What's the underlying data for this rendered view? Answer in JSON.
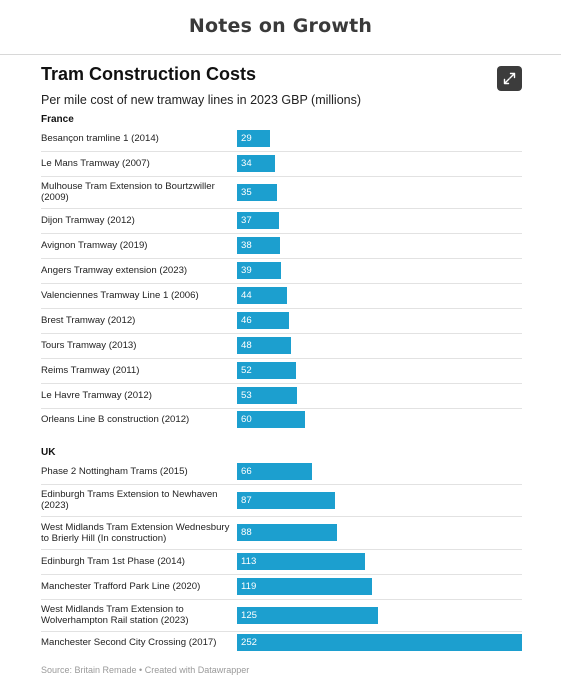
{
  "site": {
    "title": "Notes on Growth"
  },
  "icons": {
    "expand": "expand-arrows-icon"
  },
  "colors": {
    "bar": "#1c9fcf",
    "expand_button": "#3c3c3c"
  },
  "footer": {
    "text": "Source: Britain Remade • Created with Datawrapper"
  },
  "chart_data": {
    "type": "bar",
    "orientation": "horizontal",
    "title": "Tram Construction Costs",
    "subtitle": "Per mile cost of new tramway lines in 2023 GBP (millions)",
    "xlim": [
      0,
      252
    ],
    "grid": false,
    "groups": [
      {
        "name": "France",
        "categories": [
          "Besançon tramline 1 (2014)",
          "Le Mans Tramway (2007)",
          "Mulhouse Tram Extension to Bourtzwiller (2009)",
          "Dijon Tramway (2012)",
          "Avignon Tramway (2019)",
          "Angers Tramway extension (2023)",
          "Valenciennes Tramway Line 1 (2006)",
          "Brest Tramway (2012)",
          "Tours Tramway (2013)",
          "Reims Tramway (2011)",
          "Le Havre Tramway (2012)",
          "Orleans Line B construction (2012)"
        ],
        "values": [
          29,
          34,
          35,
          37,
          38,
          39,
          44,
          46,
          48,
          52,
          53,
          60
        ]
      },
      {
        "name": "UK",
        "categories": [
          "Phase 2 Nottingham Trams (2015)",
          "Edinburgh Trams Extension to Newhaven (2023)",
          "West Midlands Tram Extension Wednesbury to Brierly Hill (In construction)",
          "Edinburgh Tram 1st Phase (2014)",
          "Manchester Trafford Park Line (2020)",
          "West Midlands Tram Extension to Wolverhampton Rail station (2023)",
          "Manchester Second City Crossing (2017)"
        ],
        "values": [
          66,
          87,
          88,
          113,
          119,
          125,
          252
        ]
      }
    ]
  }
}
